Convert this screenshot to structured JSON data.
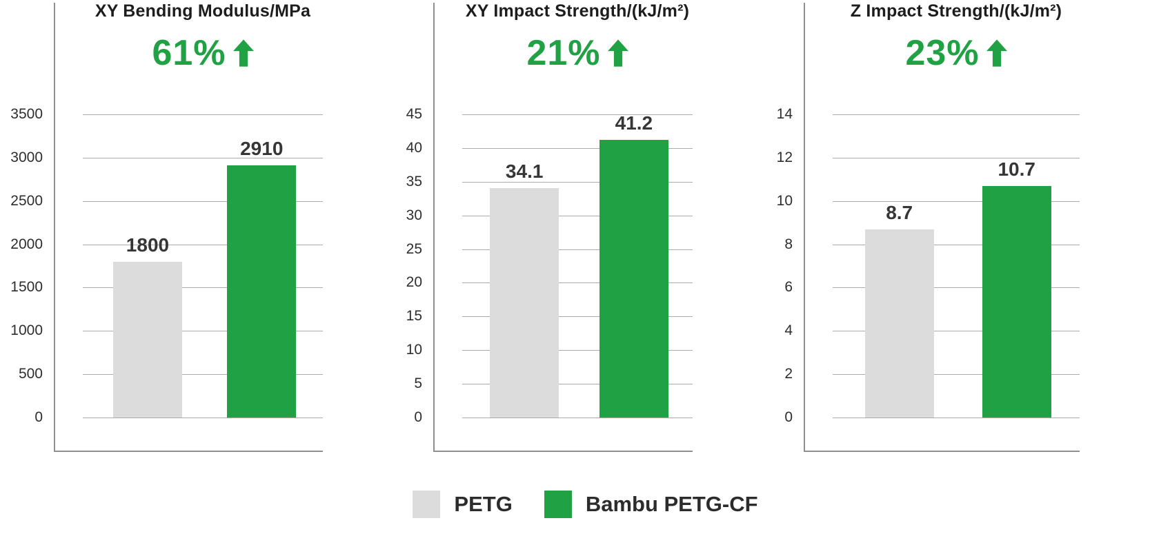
{
  "colors": {
    "accent_green": "#1fa144",
    "bar_gray": "#dcdcdc",
    "text_dark": "#363636"
  },
  "chart_data": [
    {
      "type": "bar",
      "title": "XY Bending Modulus/MPa",
      "improvement_label": "61%",
      "improvement_direction": "up",
      "categories": [
        "PETG",
        "Bambu PETG-CF"
      ],
      "values": [
        1800,
        2910
      ],
      "value_labels": [
        "1800",
        "2910"
      ],
      "colors": [
        "#dcdcdc",
        "#1fa144"
      ],
      "ylim": [
        0,
        3500
      ],
      "yticks": [
        0,
        500,
        1000,
        1500,
        2000,
        2500,
        3000,
        3500
      ],
      "grid": true,
      "xlabel": "",
      "ylabel": "",
      "legend_position": "shared-bottom"
    },
    {
      "type": "bar",
      "title": "XY Impact Strength/(kJ/m²)",
      "improvement_label": "21%",
      "improvement_direction": "up",
      "categories": [
        "PETG",
        "Bambu PETG-CF"
      ],
      "values": [
        34.1,
        41.2
      ],
      "value_labels": [
        "34.1",
        "41.2"
      ],
      "colors": [
        "#dcdcdc",
        "#1fa144"
      ],
      "ylim": [
        0,
        45
      ],
      "yticks": [
        0,
        5,
        10,
        15,
        20,
        25,
        30,
        35,
        40,
        45
      ],
      "grid": true,
      "xlabel": "",
      "ylabel": "",
      "legend_position": "shared-bottom"
    },
    {
      "type": "bar",
      "title": "Z Impact Strength/(kJ/m²)",
      "improvement_label": "23%",
      "improvement_direction": "up",
      "categories": [
        "PETG",
        "Bambu PETG-CF"
      ],
      "values": [
        8.7,
        10.7
      ],
      "value_labels": [
        "8.7",
        "10.7"
      ],
      "colors": [
        "#dcdcdc",
        "#1fa144"
      ],
      "ylim": [
        0,
        14
      ],
      "yticks": [
        0,
        2,
        4,
        6,
        8,
        10,
        12,
        14
      ],
      "grid": true,
      "xlabel": "",
      "ylabel": "",
      "legend_position": "shared-bottom"
    }
  ],
  "legend": {
    "items": [
      {
        "label": "PETG",
        "color": "#dcdcdc"
      },
      {
        "label": "Bambu PETG-CF",
        "color": "#1fa144"
      }
    ]
  }
}
